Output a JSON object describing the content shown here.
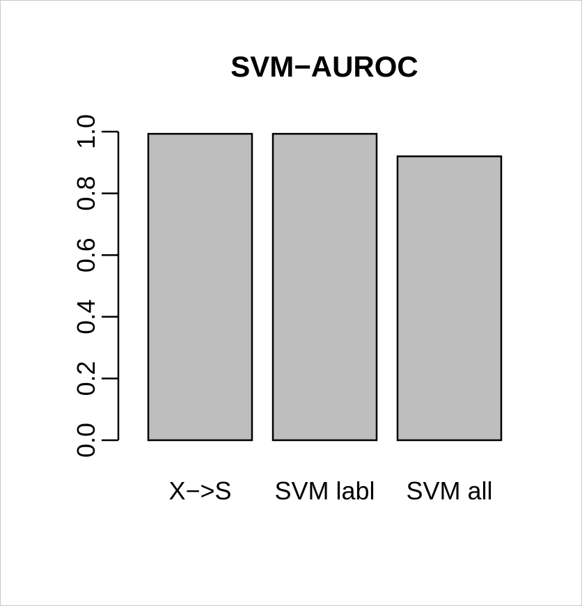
{
  "chart_data": {
    "type": "bar",
    "title": "SVM−AUROC",
    "categories": [
      "X−>S",
      "SVM labl",
      "SVM all"
    ],
    "values": [
      0.993,
      0.993,
      0.92
    ],
    "ylim": [
      0,
      1
    ],
    "yticks": [
      "0.0",
      "0.2",
      "0.4",
      "0.6",
      "0.8",
      "1.0"
    ],
    "xlabel": "",
    "ylabel": "",
    "grid": false,
    "legend": "none",
    "bar_color": "#bebebe",
    "border_color": "#000000"
  }
}
